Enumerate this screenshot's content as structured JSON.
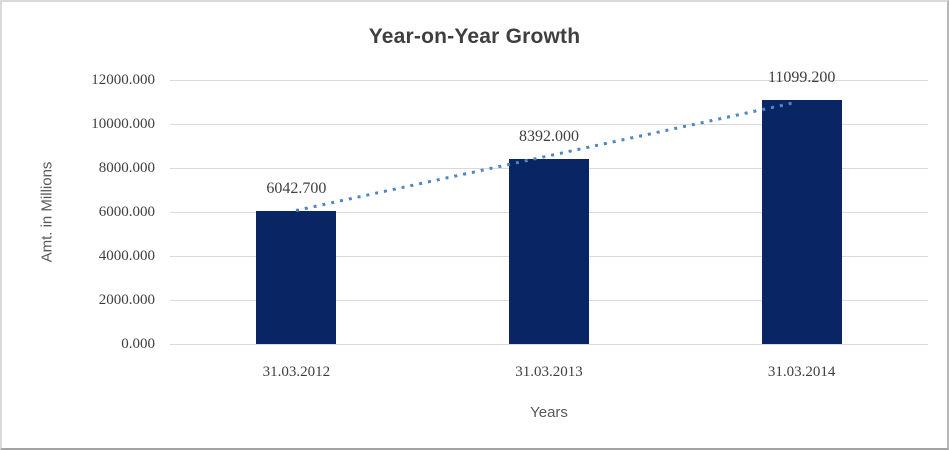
{
  "chart_data": {
    "type": "bar",
    "title": "Year-on-Year Growth",
    "xlabel": "Years",
    "ylabel": "Amt. in Millions",
    "categories": [
      "31.03.2012",
      "31.03.2013",
      "31.03.2014"
    ],
    "series": [
      {
        "name": "Amt. in Millions",
        "values": [
          6042.7,
          8392.0,
          11099.2
        ]
      }
    ],
    "data_labels": [
      "6042.700",
      "8392.000",
      "11099.200"
    ],
    "y_ticks": [
      "12000.000",
      "10000.000",
      "8000.000",
      "6000.000",
      "4000.000",
      "2000.000",
      "0.000"
    ],
    "ylim": [
      0,
      12000
    ],
    "grid": true,
    "legend_position": "none",
    "trendline": {
      "type": "linear",
      "style": "dotted",
      "span": "first-bar-to-last-bar"
    }
  },
  "colors": {
    "bar": "#0a2563",
    "trendline": "#4e86c8",
    "gridline": "#d9d9d9",
    "tick_text": "#3f3f3f",
    "axis_title_text": "#595959",
    "title_text": "#3f3f3f",
    "frame": "#d9d9d9"
  }
}
